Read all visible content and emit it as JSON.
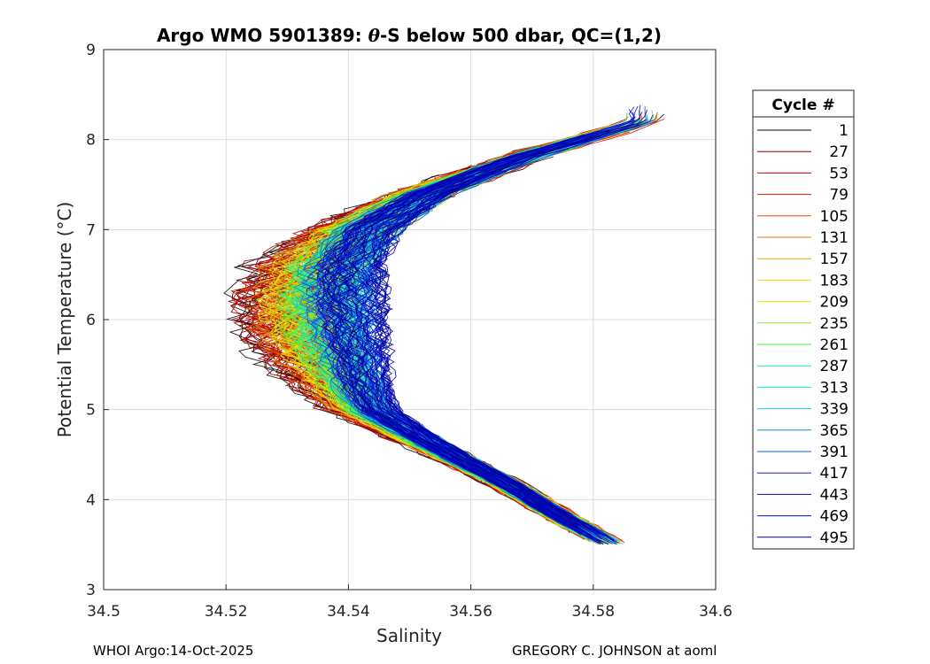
{
  "chart_data": {
    "type": "line",
    "title": "Argo WMO 5901389: θ-S below 500 dbar,  QC=(1,2)",
    "title_parts": {
      "prefix": "Argo WMO 5901389: ",
      "theta": "θ",
      "suffix": "-S below 500 dbar,  QC=(1,2)"
    },
    "xlabel": "Salinity",
    "ylabel": "Potential Temperature (°C)",
    "xlim": [
      34.5,
      34.6
    ],
    "ylim": [
      3,
      9
    ],
    "xticks": [
      "34.5",
      "34.52",
      "34.54",
      "34.56",
      "34.58",
      "34.6"
    ],
    "yticks": [
      "3",
      "4",
      "5",
      "6",
      "7",
      "8",
      "9"
    ],
    "grid": true,
    "legend_title": "Cycle #",
    "legend_position": "right-outside",
    "series": [
      {
        "name": "1",
        "color": "#1a0000",
        "cycle": 1
      },
      {
        "name": "27",
        "color": "#8c0000",
        "cycle": 27
      },
      {
        "name": "53",
        "color": "#c00000",
        "cycle": 53
      },
      {
        "name": "79",
        "color": "#e01a00",
        "cycle": 79
      },
      {
        "name": "105",
        "color": "#e84a00",
        "cycle": 105
      },
      {
        "name": "131",
        "color": "#e07800",
        "cycle": 131
      },
      {
        "name": "157",
        "color": "#e8a400",
        "cycle": 157
      },
      {
        "name": "183",
        "color": "#f0dc00",
        "cycle": 183
      },
      {
        "name": "209",
        "color": "#c8ee10",
        "cycle": 209
      },
      {
        "name": "235",
        "color": "#80e830",
        "cycle": 235
      },
      {
        "name": "261",
        "color": "#40f040",
        "cycle": 261
      },
      {
        "name": "287",
        "color": "#20f0a0",
        "cycle": 287
      },
      {
        "name": "313",
        "color": "#10e8c8",
        "cycle": 313
      },
      {
        "name": "339",
        "color": "#10c8e0",
        "cycle": 339
      },
      {
        "name": "365",
        "color": "#0890c8",
        "cycle": 365
      },
      {
        "name": "391",
        "color": "#1058e0",
        "cycle": 391
      },
      {
        "name": "417",
        "color": "#1a1ad8",
        "cycle": 417
      },
      {
        "name": "443",
        "color": "#100890",
        "cycle": 443
      },
      {
        "name": "469",
        "color": "#0010d8",
        "cycle": 469
      },
      {
        "name": "495",
        "color": "#0000a0",
        "cycle": 495
      }
    ]
  },
  "footer": {
    "left": "WHOI Argo:14-Oct-2025",
    "right": "GREGORY C. JOHNSON at aoml"
  }
}
